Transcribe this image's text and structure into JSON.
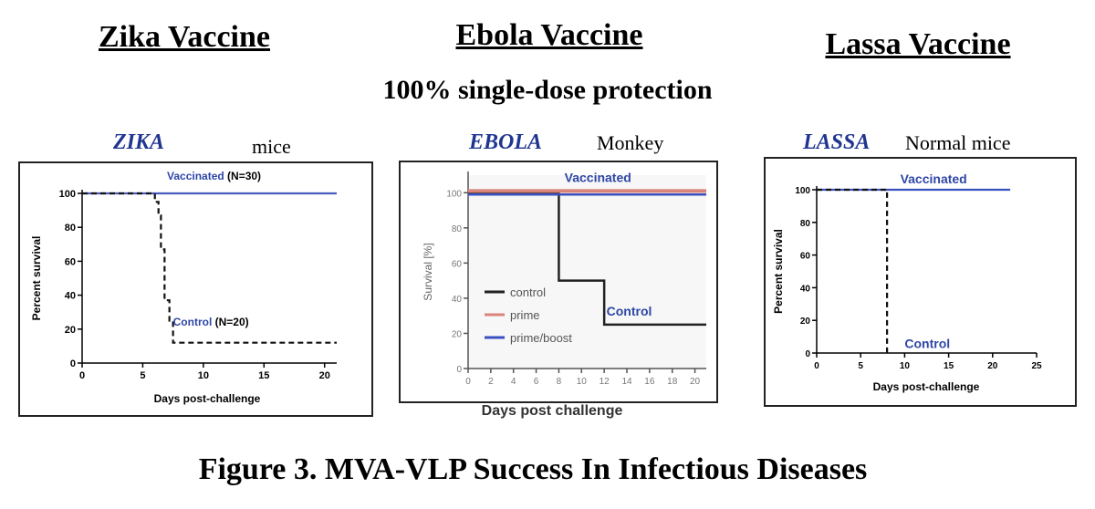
{
  "headings": {
    "zika": "Zika Vaccine",
    "ebola": "Ebola Vaccine",
    "lassa": "Lassa Vaccine"
  },
  "subtitle": "100% single-dose protection",
  "caption": "Figure 3. MVA-VLP Success In Infectious Diseases",
  "panels": {
    "zika": {
      "name": "ZIKA",
      "model": "mice"
    },
    "ebola": {
      "name": "EBOLA",
      "model": "Monkey"
    },
    "lassa": {
      "name": "LASSA",
      "model": "Normal mice"
    }
  },
  "colors": {
    "vaccinated": "#4a5bbf",
    "control": "#111111",
    "prime": "#d9837a",
    "label_blue": "#2f47a6",
    "title_blue": "#1f3590"
  },
  "chart_data": [
    {
      "id": "zika",
      "type": "line",
      "xlabel": "Days post-challenge",
      "ylabel": "Percent survival",
      "xlim": [
        0,
        21
      ],
      "ylim": [
        0,
        100
      ],
      "xticks": [
        0,
        5,
        10,
        15,
        20
      ],
      "yticks": [
        0,
        20,
        40,
        60,
        80,
        100
      ],
      "series": [
        {
          "name": "Vaccinated (N=30)",
          "style": "step",
          "color": "#4a5bbf",
          "dash": false,
          "x": [
            0,
            21
          ],
          "y": [
            100,
            100
          ]
        },
        {
          "name": "Control (N=20)",
          "style": "step",
          "color": "#111111",
          "dash": true,
          "x": [
            0,
            6,
            6.3,
            6.5,
            6.8,
            7.2,
            7.5,
            21
          ],
          "y": [
            100,
            95,
            87,
            67,
            37,
            25,
            12,
            12
          ]
        }
      ],
      "annotations": [
        {
          "text": "Vaccinated",
          "extra": " (N=30)",
          "x": 7,
          "y": 108,
          "color": "#2f47a6"
        },
        {
          "text": "Control",
          "extra": " (N=20)",
          "x": 7.5,
          "y": 22,
          "color": "#2f47a6"
        }
      ]
    },
    {
      "id": "ebola",
      "type": "line",
      "xlabel": "Days post challenge",
      "ylabel": "Survival [%]",
      "xlim": [
        0,
        21
      ],
      "ylim": [
        0,
        110
      ],
      "xticks": [
        0,
        2,
        4,
        6,
        8,
        10,
        12,
        14,
        16,
        18,
        20
      ],
      "yticks": [
        0,
        20,
        40,
        60,
        80,
        100
      ],
      "series": [
        {
          "name": "control",
          "style": "step",
          "color": "#222222",
          "dash": false,
          "x": [
            0,
            8,
            12,
            21
          ],
          "y": [
            100,
            50,
            25,
            25
          ]
        },
        {
          "name": "prime",
          "style": "step",
          "color": "#d9837a",
          "dash": false,
          "x": [
            0,
            21
          ],
          "y": [
            101,
            101
          ]
        },
        {
          "name": "prime/boost",
          "style": "step",
          "color": "#3a4fc0",
          "dash": false,
          "x": [
            0,
            21
          ],
          "y": [
            99,
            99
          ]
        }
      ],
      "annotations": [
        {
          "text": "Vaccinated",
          "extra": "",
          "x": 8.5,
          "y": 106,
          "color": "#2f47a6"
        },
        {
          "text": "Control",
          "extra": "",
          "x": 12.2,
          "y": 30,
          "color": "#2f47a6"
        }
      ],
      "legend": "bottom-left"
    },
    {
      "id": "lassa",
      "type": "line",
      "xlabel": "Days post-challenge",
      "ylabel": "Percent survival",
      "xlim": [
        0,
        25
      ],
      "ylim": [
        0,
        100
      ],
      "xticks": [
        0,
        5,
        10,
        15,
        20,
        25
      ],
      "yticks": [
        0,
        20,
        40,
        60,
        80,
        100
      ],
      "series": [
        {
          "name": "Vaccinated",
          "style": "step",
          "color": "#3a4fc0",
          "dash": false,
          "x": [
            0,
            22
          ],
          "y": [
            100,
            100
          ]
        },
        {
          "name": "Control",
          "style": "step",
          "color": "#111111",
          "dash": true,
          "x": [
            0,
            8,
            8
          ],
          "y": [
            100,
            100,
            0
          ]
        }
      ],
      "annotations": [
        {
          "text": "Vaccinated",
          "extra": "",
          "x": 9.5,
          "y": 104,
          "color": "#2f47a6"
        },
        {
          "text": "Control",
          "extra": "",
          "x": 10,
          "y": 3,
          "color": "#2f47a6"
        }
      ]
    }
  ]
}
